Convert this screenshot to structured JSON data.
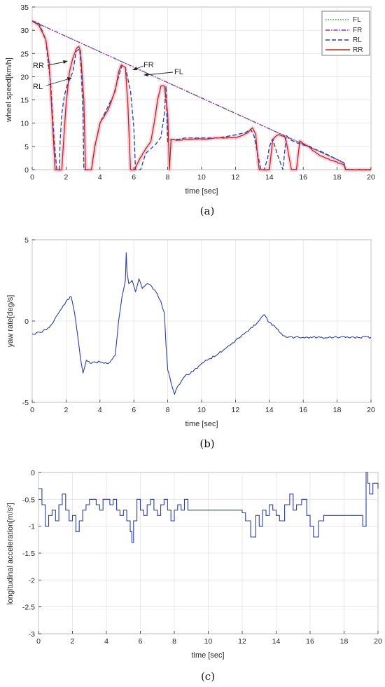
{
  "chart_data": [
    {
      "type": "line",
      "xlabel": "time [sec]",
      "ylabel": "wheel speed[km/h]",
      "xlim": [
        0,
        20
      ],
      "ylim": [
        0,
        35
      ],
      "xticks": [
        "0",
        "2",
        "4",
        "6",
        "8",
        "10",
        "12",
        "14",
        "16",
        "18",
        "20"
      ],
      "yticks": [
        "0",
        "5",
        "10",
        "15",
        "20",
        "25",
        "30",
        "35"
      ],
      "grid": true,
      "legend_position": "top-right",
      "caption": "(a)",
      "annotations": [
        "RR",
        "RL",
        "FR",
        "FL"
      ],
      "colors": {
        "FL": "#2ca02c",
        "FR": "#9a2fb0",
        "RL": "#2c3f9e",
        "RR": "#b5291c",
        "RR_highlight": "#f58ab0"
      },
      "series": [
        {
          "name": "FL",
          "style": "dotted",
          "x": [
            0,
            18.4,
            18.5,
            20
          ],
          "y": [
            32,
            1.5,
            0,
            0
          ]
        },
        {
          "name": "FR",
          "style": "dashdot",
          "x": [
            0,
            18.4,
            18.5,
            20
          ],
          "y": [
            32,
            1.5,
            0,
            0
          ]
        },
        {
          "name": "RL",
          "style": "dashed",
          "x": [
            0,
            0.4,
            0.8,
            1.1,
            1.3,
            1.45,
            1.6,
            1.65,
            1.75,
            1.9,
            2.1,
            2.4,
            2.6,
            2.8,
            2.9,
            3.0,
            3.05,
            3.2,
            3.45,
            3.5,
            3.7,
            4.0,
            4.4,
            4.8,
            5.1,
            5.3,
            5.5,
            5.8,
            6.0,
            6.1,
            6.4,
            6.7,
            7.0,
            7.3,
            7.6,
            7.8,
            7.9,
            8.0,
            8.2,
            8.6,
            9.0,
            10.0,
            11.0,
            12.0,
            12.6,
            12.9,
            13.1,
            13.3,
            13.5,
            13.7,
            13.9,
            14.0,
            14.2,
            14.5,
            14.8,
            15.0,
            15.2,
            15.6,
            16.0,
            16.4,
            16.6,
            17.0,
            18.4,
            18.5,
            20
          ],
          "y": [
            32,
            31.5,
            28,
            18,
            6,
            0,
            0,
            6,
            12,
            16,
            18.5,
            21,
            25.5,
            26,
            21,
            12,
            0,
            0,
            0,
            0,
            5,
            10,
            13,
            16,
            20,
            22.5,
            22,
            17,
            9,
            0,
            0,
            3.5,
            4.5,
            5.5,
            7,
            12,
            18,
            6,
            6.5,
            6.5,
            6.8,
            6.8,
            6.8,
            7.5,
            8,
            8.7,
            7.2,
            3.5,
            0,
            0,
            2.5,
            5,
            6.6,
            3,
            0,
            7.4,
            6.5,
            5.8,
            5.3,
            5.0,
            4.5,
            4.0,
            1.5,
            0,
            0
          ]
        },
        {
          "name": "RR",
          "style": "solid",
          "x": [
            0,
            0.4,
            0.8,
            1.0,
            1.2,
            1.35,
            1.45,
            1.5,
            1.75,
            1.85,
            2.0,
            2.2,
            2.4,
            2.6,
            2.75,
            2.85,
            3.05,
            3.15,
            3.25,
            3.35,
            3.5,
            3.7,
            4.0,
            4.5,
            4.9,
            5.1,
            5.25,
            5.5,
            5.65,
            5.8,
            6.0,
            6.05,
            6.3,
            6.7,
            7.0,
            7.2,
            7.4,
            7.6,
            7.8,
            8.0,
            8.1,
            8.2,
            8.5,
            9.0,
            10.0,
            11.0,
            12.0,
            12.5,
            12.8,
            13.0,
            13.2,
            13.3,
            13.4,
            14.0,
            14.2,
            14.5,
            14.9,
            15.0,
            15.3,
            15.6,
            15.8,
            16.0,
            16.3,
            16.6,
            17.0,
            18.4,
            18.5,
            20
          ],
          "y": [
            32,
            31,
            28,
            23,
            10,
            0,
            0,
            0,
            0,
            6,
            14,
            21,
            24,
            26,
            26.5,
            25.5,
            15,
            0,
            0,
            0,
            0,
            5,
            10,
            13,
            17,
            21,
            22.5,
            22,
            14,
            0,
            0,
            0,
            2,
            4.5,
            6,
            10,
            15,
            18,
            18,
            12,
            0,
            6.5,
            6.3,
            6.5,
            6.6,
            6.8,
            6.9,
            7.5,
            8.2,
            9.0,
            7.5,
            3.0,
            0,
            0,
            6.5,
            7.5,
            7.2,
            6.0,
            0,
            0,
            6.2,
            5.6,
            5.0,
            4.0,
            3.0,
            1.0,
            0,
            0
          ]
        }
      ]
    },
    {
      "type": "line",
      "xlabel": "time [sec]",
      "ylabel": "yaw rate[deg/s]",
      "xlim": [
        0,
        20
      ],
      "ylim": [
        -5,
        5
      ],
      "xticks": [
        "0",
        "2",
        "4",
        "6",
        "8",
        "10",
        "12",
        "14",
        "16",
        "18",
        "20"
      ],
      "yticks": [
        "-5",
        "0",
        "5"
      ],
      "grid": true,
      "caption": "(b)",
      "color": "#2c3f9e",
      "x": [
        0,
        0.5,
        1.0,
        1.5,
        2.0,
        2.3,
        2.5,
        2.7,
        2.85,
        3.0,
        3.2,
        3.5,
        4.0,
        4.5,
        4.9,
        5.1,
        5.3,
        5.5,
        5.55,
        5.6,
        5.7,
        5.9,
        6.1,
        6.3,
        6.5,
        6.8,
        7.0,
        7.3,
        7.6,
        7.8,
        7.9,
        8.0,
        8.2,
        8.4,
        8.5,
        8.8,
        9.0,
        9.5,
        10.0,
        10.5,
        11.0,
        11.5,
        12.0,
        12.5,
        13.0,
        13.5,
        13.7,
        14.0,
        14.5,
        14.8,
        15.0,
        15.5,
        16.0,
        17.0,
        18.0,
        19.0,
        20.0
      ],
      "y": [
        -0.8,
        -0.7,
        -0.4,
        0.4,
        1.2,
        1.5,
        0.5,
        -1.0,
        -2.3,
        -3.2,
        -2.4,
        -2.6,
        -2.5,
        -2.6,
        -2.1,
        0.0,
        1.5,
        2.5,
        4.2,
        3.0,
        2.3,
        2.5,
        1.8,
        2.6,
        2.0,
        2.3,
        2.2,
        1.8,
        1.2,
        0.5,
        -1.5,
        -3.0,
        -3.8,
        -4.5,
        -4.2,
        -3.7,
        -3.4,
        -3.1,
        -2.6,
        -2.3,
        -2.0,
        -1.6,
        -1.2,
        -0.8,
        -0.4,
        0.2,
        0.4,
        -0.1,
        -0.5,
        -0.9,
        -1.0,
        -1.0,
        -1.0,
        -1.0,
        -1.0,
        -1.0,
        -1.0
      ]
    },
    {
      "type": "line",
      "xlabel": "time [sec]",
      "ylabel": "longitudinal acceleration[m/s²]",
      "xlim": [
        0,
        20
      ],
      "ylim": [
        -3,
        0
      ],
      "xticks": [
        "0",
        "2",
        "4",
        "6",
        "8",
        "10",
        "12",
        "14",
        "16",
        "18",
        "20"
      ],
      "yticks": [
        "-3",
        "-2.5",
        "-2",
        "-1.5",
        "-1",
        "-0.5",
        "0"
      ],
      "grid": true,
      "caption": "(c)",
      "color": "#2c3f9e",
      "x": [
        0,
        0.2,
        0.4,
        0.6,
        0.8,
        1.0,
        1.2,
        1.4,
        1.6,
        1.8,
        2.0,
        2.2,
        2.4,
        2.6,
        2.8,
        3.0,
        3.2,
        3.4,
        3.6,
        3.8,
        4.0,
        4.2,
        4.4,
        4.6,
        4.8,
        5.0,
        5.2,
        5.4,
        5.5,
        5.6,
        5.8,
        6.0,
        6.2,
        6.4,
        6.6,
        6.8,
        7.0,
        7.2,
        7.4,
        7.6,
        7.8,
        8.0,
        8.2,
        8.4,
        8.6,
        8.8,
        9.0,
        9.5,
        10.0,
        10.5,
        11.0,
        11.5,
        12.0,
        12.2,
        12.5,
        12.8,
        13.0,
        13.2,
        13.4,
        13.6,
        13.8,
        14.0,
        14.2,
        14.5,
        14.8,
        15.0,
        15.2,
        15.5,
        15.8,
        16.0,
        16.2,
        16.5,
        16.8,
        17.0,
        17.5,
        18.0,
        18.5,
        19.0,
        19.1,
        19.3,
        19.4,
        19.5,
        19.7,
        20.0
      ],
      "y": [
        -0.3,
        -0.6,
        -1.0,
        -0.8,
        -0.7,
        -0.9,
        -0.6,
        -0.4,
        -0.7,
        -0.9,
        -0.8,
        -1.1,
        -0.9,
        -0.7,
        -0.6,
        -0.5,
        -0.5,
        -0.6,
        -0.7,
        -0.5,
        -0.5,
        -0.6,
        -0.5,
        -0.7,
        -0.8,
        -0.7,
        -0.9,
        -1.1,
        -1.3,
        -0.9,
        -0.5,
        -0.7,
        -0.8,
        -0.6,
        -0.5,
        -0.7,
        -0.8,
        -0.6,
        -0.5,
        -0.7,
        -0.9,
        -0.7,
        -0.6,
        -0.7,
        -0.5,
        -0.7,
        -0.7,
        -0.7,
        -0.7,
        -0.7,
        -0.7,
        -0.7,
        -0.75,
        -0.9,
        -1.2,
        -0.8,
        -1.0,
        -0.7,
        -0.8,
        -0.6,
        -0.7,
        -0.8,
        -0.9,
        -0.6,
        -0.4,
        -0.7,
        -0.6,
        -0.5,
        -0.8,
        -1.0,
        -1.2,
        -0.9,
        -0.8,
        -0.8,
        -0.8,
        -0.8,
        -0.8,
        -0.8,
        -1.0,
        0.0,
        -0.2,
        -0.4,
        -0.2,
        -0.3
      ]
    }
  ]
}
